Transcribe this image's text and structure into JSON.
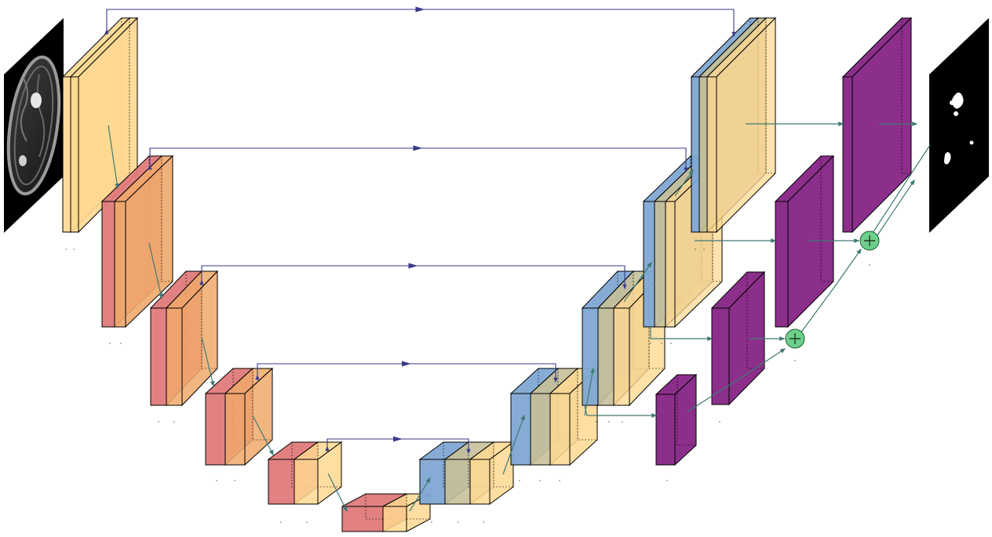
{
  "colors": {
    "encoder_block": "#e07a7a",
    "encoder_conv": "#ffd891",
    "encoder_conv_dark": "#f0a96b",
    "decoder_up": "#7fa8d4",
    "decoder_mix": "#c8c098",
    "deep_supervision": "#8b2f8a",
    "skip_arrow": "#3a3a8c",
    "flow_arrow": "#3f7a74",
    "sum_node": "#6ccf8a",
    "edge": "#000000"
  },
  "nodes": [
    {
      "id": "input-mri-slice",
      "kind": "input-image"
    },
    {
      "id": "encoder-level-1",
      "kind": "conv-stack",
      "level": 1
    },
    {
      "id": "encoder-level-2",
      "kind": "conv-stack",
      "level": 2
    },
    {
      "id": "encoder-level-3",
      "kind": "conv-stack",
      "level": 3
    },
    {
      "id": "encoder-level-4",
      "kind": "conv-stack",
      "level": 4
    },
    {
      "id": "encoder-level-5",
      "kind": "conv-stack",
      "level": 5
    },
    {
      "id": "bottleneck",
      "kind": "conv-stack",
      "level": 6
    },
    {
      "id": "decoder-level-5",
      "kind": "upconv-stack",
      "level": 5
    },
    {
      "id": "decoder-level-4",
      "kind": "upconv-stack",
      "level": 4
    },
    {
      "id": "decoder-level-3",
      "kind": "upconv-stack",
      "level": 3
    },
    {
      "id": "decoder-level-2",
      "kind": "upconv-stack",
      "level": 2
    },
    {
      "id": "decoder-level-1",
      "kind": "upconv-stack",
      "level": 1
    },
    {
      "id": "deep-supervision-3",
      "kind": "segmentation-head"
    },
    {
      "id": "deep-supervision-2",
      "kind": "segmentation-head"
    },
    {
      "id": "deep-supervision-1",
      "kind": "segmentation-head"
    },
    {
      "id": "deep-supervision-0",
      "kind": "segmentation-head"
    },
    {
      "id": "sum-node-lower",
      "kind": "element-wise-sum",
      "symbol": "+"
    },
    {
      "id": "sum-node-upper",
      "kind": "element-wise-sum",
      "symbol": "+"
    },
    {
      "id": "output-segmentation-mask",
      "kind": "output-image"
    }
  ],
  "edges": [
    {
      "from": "encoder-level-1",
      "to": "decoder-level-1",
      "type": "skip"
    },
    {
      "from": "encoder-level-2",
      "to": "decoder-level-2",
      "type": "skip"
    },
    {
      "from": "encoder-level-3",
      "to": "decoder-level-3",
      "type": "skip"
    },
    {
      "from": "encoder-level-4",
      "to": "decoder-level-4",
      "type": "skip"
    },
    {
      "from": "encoder-level-5",
      "to": "decoder-level-5",
      "type": "skip"
    },
    {
      "from": "input-mri-slice",
      "to": "encoder-level-1",
      "type": "flow"
    },
    {
      "from": "decoder-level-1",
      "to": "deep-supervision-0",
      "type": "flow"
    },
    {
      "from": "deep-supervision-3",
      "to": "sum-node-lower",
      "type": "flow"
    },
    {
      "from": "deep-supervision-2",
      "to": "sum-node-lower",
      "type": "flow"
    },
    {
      "from": "sum-node-lower",
      "to": "sum-node-upper",
      "type": "flow"
    },
    {
      "from": "deep-supervision-1",
      "to": "sum-node-upper",
      "type": "flow"
    },
    {
      "from": "sum-node-upper",
      "to": "output-segmentation-mask",
      "type": "flow"
    },
    {
      "from": "deep-supervision-0",
      "to": "output-segmentation-mask",
      "type": "flow"
    }
  ]
}
